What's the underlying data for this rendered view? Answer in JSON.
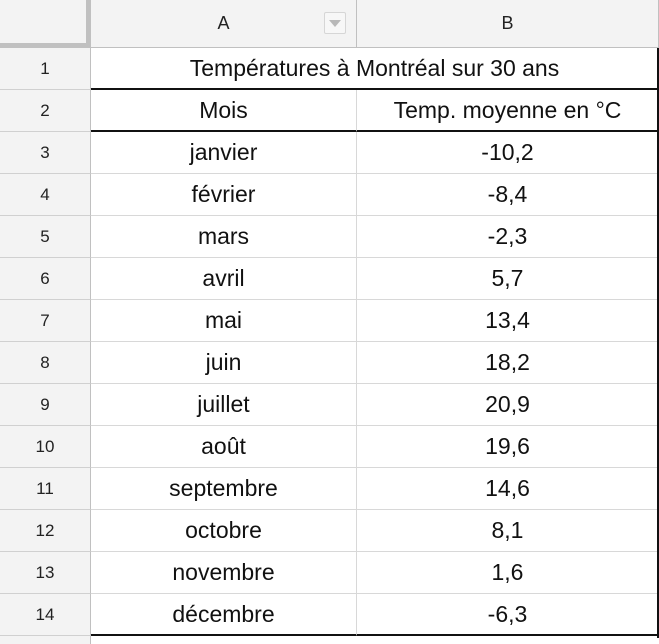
{
  "columns": {
    "a": "A",
    "b": "B"
  },
  "rows": {
    "r1": "1",
    "r2": "2",
    "r3": "3",
    "r4": "4",
    "r5": "5",
    "r6": "6",
    "r7": "7",
    "r8": "8",
    "r9": "9",
    "r10": "10",
    "r11": "11",
    "r12": "12",
    "r13": "13",
    "r14": "14"
  },
  "table": {
    "title": "Températures à Montréal sur 30 ans",
    "header_month": "Mois",
    "header_temp": "Temp. moyenne en °C",
    "data": [
      {
        "month": "janvier",
        "temp": "-10,2"
      },
      {
        "month": "février",
        "temp": "-8,4"
      },
      {
        "month": "mars",
        "temp": "-2,3"
      },
      {
        "month": "avril",
        "temp": "5,7"
      },
      {
        "month": "mai",
        "temp": "13,4"
      },
      {
        "month": "juin",
        "temp": "18,2"
      },
      {
        "month": "juillet",
        "temp": "20,9"
      },
      {
        "month": "août",
        "temp": "19,6"
      },
      {
        "month": "septembre",
        "temp": "14,6"
      },
      {
        "month": "octobre",
        "temp": "8,1"
      },
      {
        "month": "novembre",
        "temp": "1,6"
      },
      {
        "month": "décembre",
        "temp": "-6,3"
      }
    ]
  }
}
